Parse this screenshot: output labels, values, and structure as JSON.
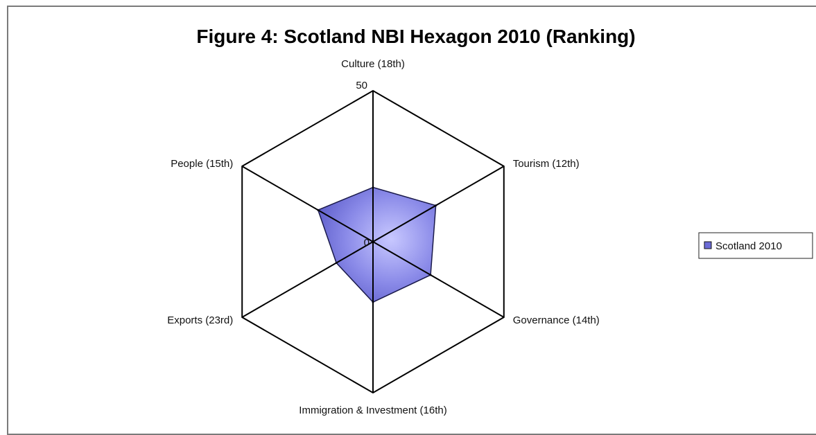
{
  "chart_data": {
    "type": "radar",
    "title": "Figure 4: Scotland NBI Hexagon 2010 (Ranking)",
    "categories": [
      "Culture (18th)",
      "Tourism (12th)",
      "Governance (14th)",
      "Immigration & Investment (16th)",
      "Exports (23rd)",
      "People (15th)"
    ],
    "series": [
      {
        "name": "Scotland 2010",
        "values": [
          18,
          24,
          22,
          20,
          14,
          21
        ],
        "color": "#6b6bd6"
      }
    ],
    "rlim": [
      0,
      50
    ],
    "r_ticks": [
      "0",
      "50"
    ],
    "grid": true,
    "legend_position": "right"
  }
}
